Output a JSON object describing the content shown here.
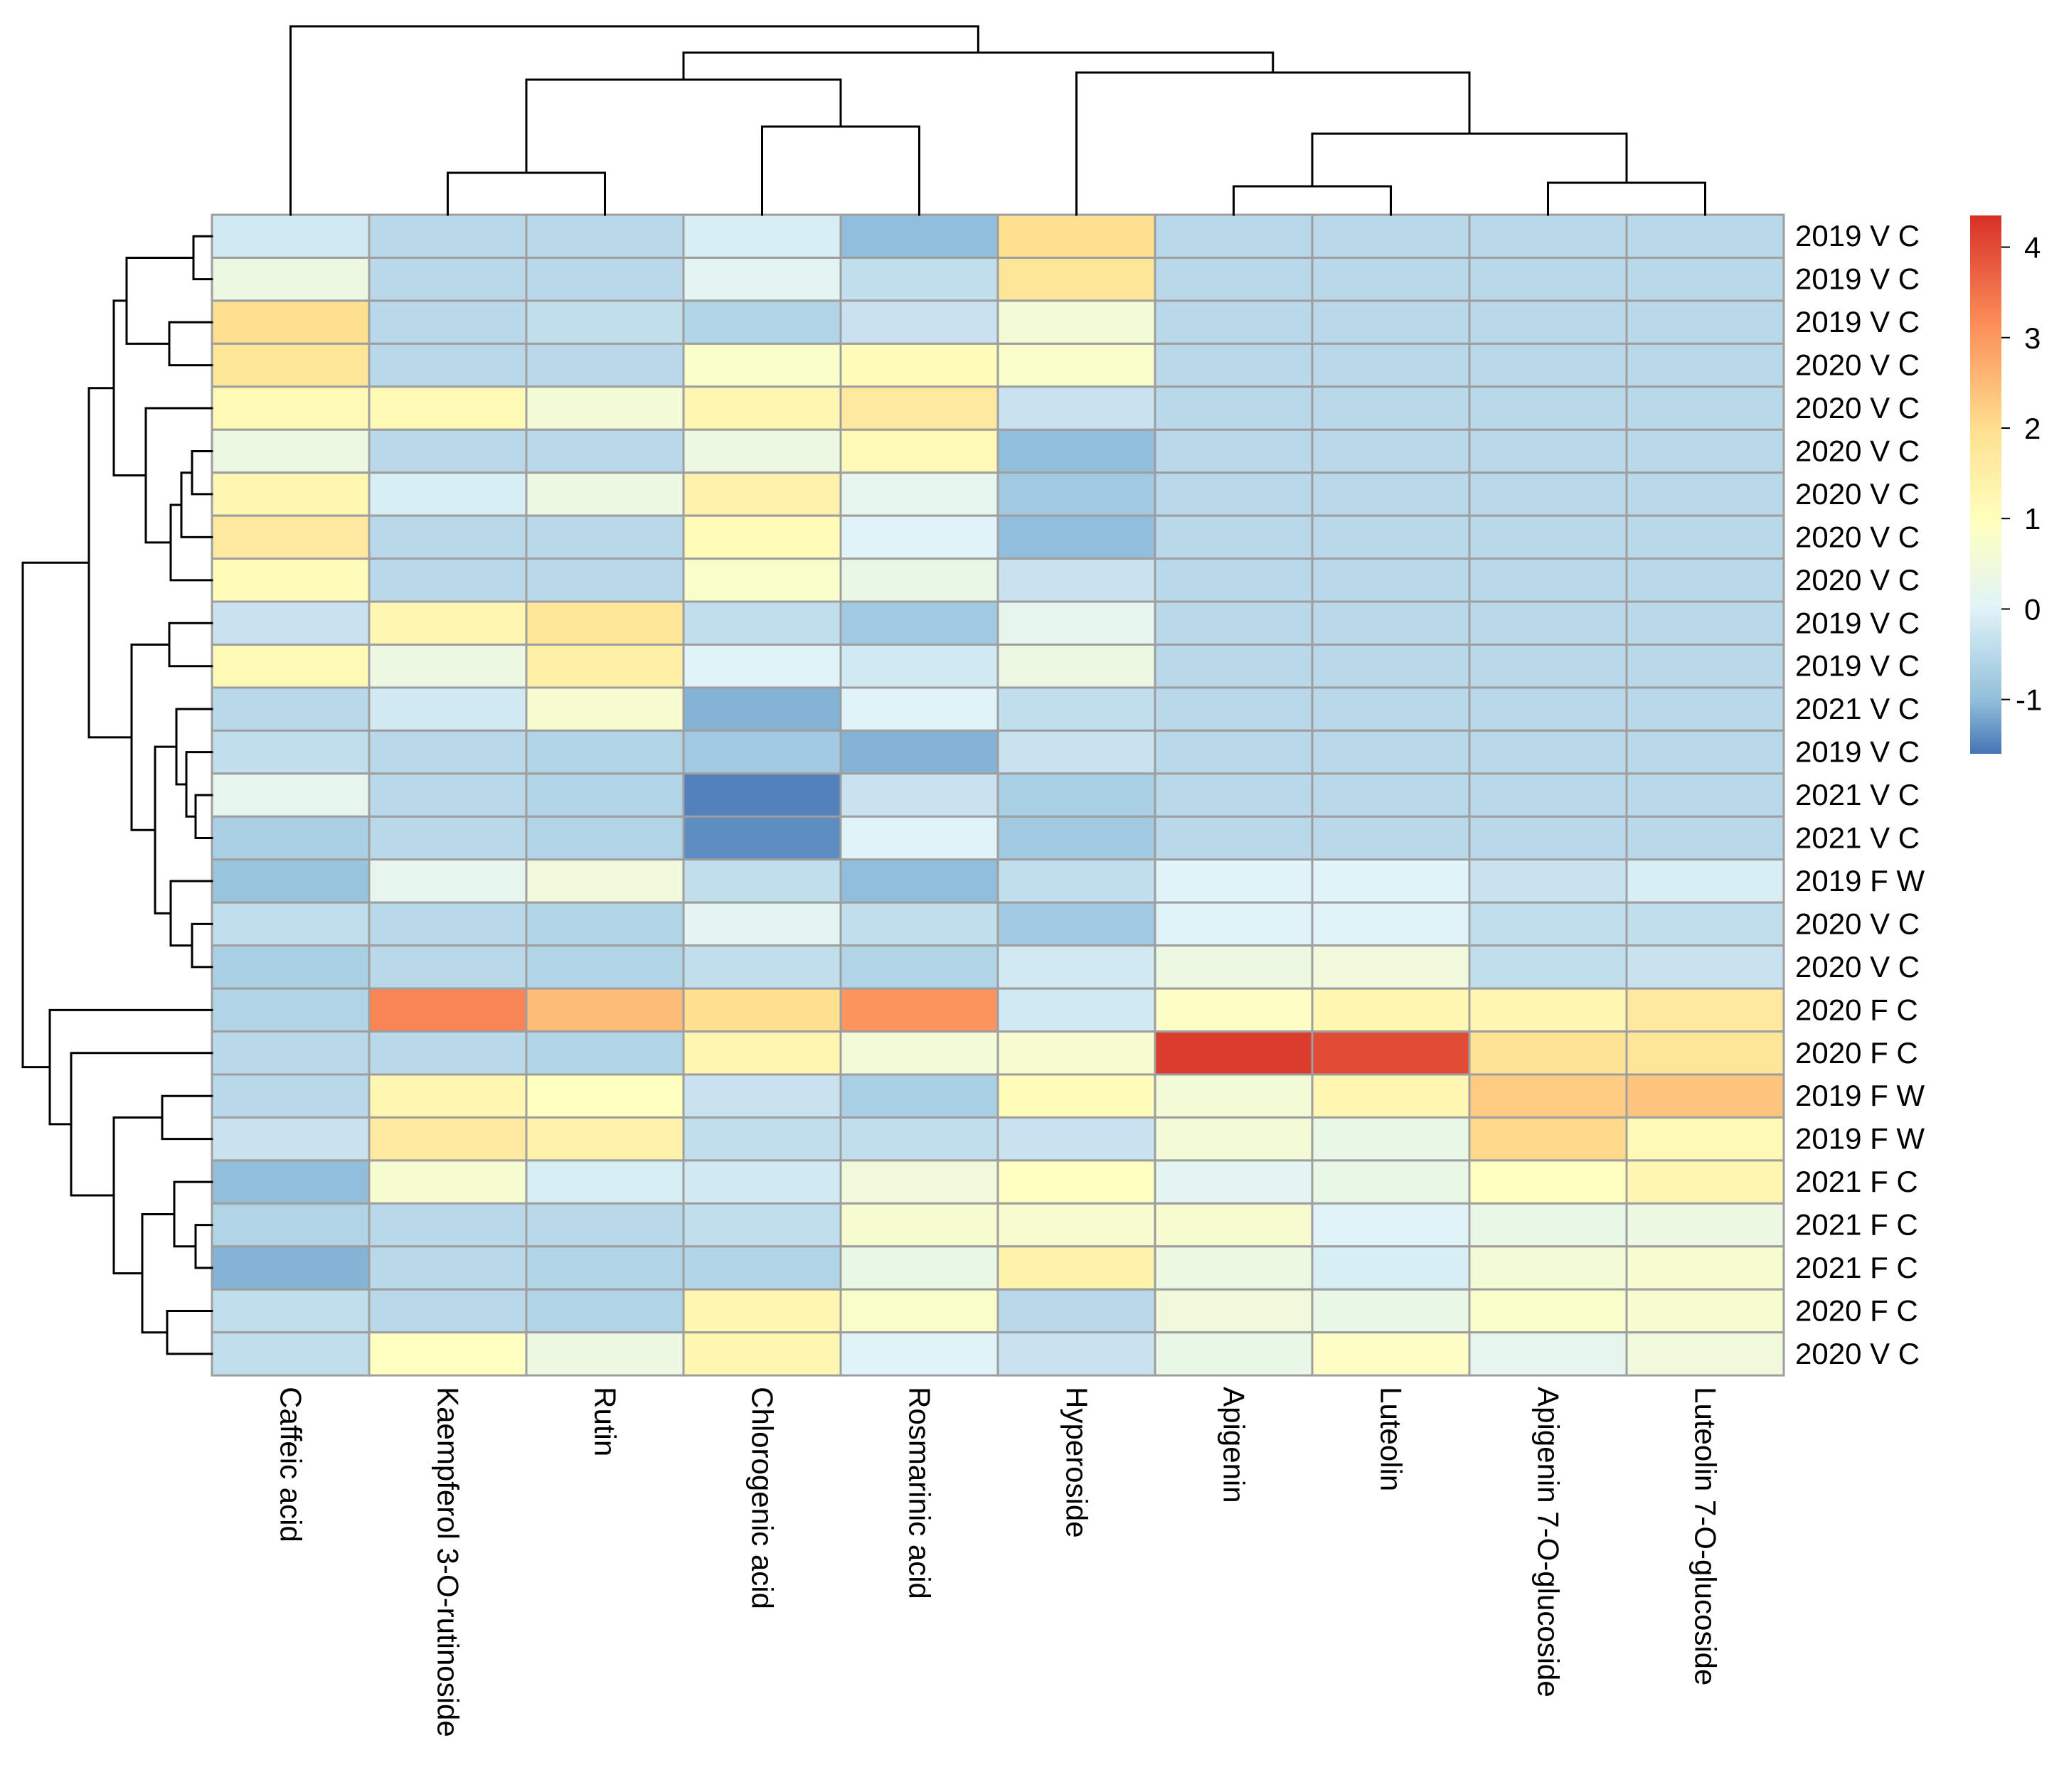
{
  "chart_data": {
    "type": "heatmap",
    "title": "",
    "columns": [
      "Caffeic acid",
      "Kaempferol 3-O-rutinoside",
      "Rutin",
      "Chlorogenic acid",
      "Rosmarinic acid",
      "Hyperoside",
      "Apigenin",
      "Luteolin",
      "Apigenin 7-O-glucoside",
      "Luteolin 7-O-glucoside"
    ],
    "rows": [
      "2019 V C",
      "2019 V C",
      "2019 V C",
      "2020 V C",
      "2020 V C",
      "2020 V C",
      "2020 V C",
      "2020 V C",
      "2020 V C",
      "2019 V C",
      "2019 V C",
      "2021 V C",
      "2019 V C",
      "2021 V C",
      "2021 V C",
      "2019 F W",
      "2020 V C",
      "2020 V C",
      "2020 F C",
      "2020 F C",
      "2019 F W",
      "2019 F W",
      "2021 F C",
      "2021 F C",
      "2021 F C",
      "2020 F C",
      "2020 V C"
    ],
    "values": [
      [
        -0.2,
        -0.5,
        -0.5,
        -0.1,
        -1.0,
        2.0,
        -0.5,
        -0.5,
        -0.5,
        -0.5
      ],
      [
        0.4,
        -0.5,
        -0.5,
        0.1,
        -0.4,
        1.8,
        -0.5,
        -0.5,
        -0.5,
        -0.5
      ],
      [
        2.0,
        -0.5,
        -0.4,
        -0.6,
        -0.3,
        0.6,
        -0.5,
        -0.5,
        -0.5,
        -0.5
      ],
      [
        1.8,
        -0.5,
        -0.5,
        0.8,
        1.1,
        0.8,
        -0.5,
        -0.5,
        -0.5,
        -0.5
      ],
      [
        1.2,
        1.2,
        0.6,
        1.3,
        1.7,
        -0.3,
        -0.5,
        -0.5,
        -0.5,
        -0.5
      ],
      [
        0.4,
        -0.5,
        -0.5,
        0.4,
        1.2,
        -1.0,
        -0.5,
        -0.5,
        -0.5,
        -0.5
      ],
      [
        1.3,
        -0.1,
        0.4,
        1.4,
        0.2,
        -0.8,
        -0.5,
        -0.5,
        -0.5,
        -0.5
      ],
      [
        1.7,
        -0.5,
        -0.5,
        1.1,
        0.0,
        -1.0,
        -0.5,
        -0.5,
        -0.5,
        -0.5
      ],
      [
        1.1,
        -0.5,
        -0.5,
        0.8,
        0.3,
        -0.3,
        -0.5,
        -0.5,
        -0.5,
        -0.5
      ],
      [
        -0.3,
        1.3,
        1.8,
        -0.4,
        -0.8,
        0.2,
        -0.5,
        -0.5,
        -0.5,
        -0.5
      ],
      [
        1.2,
        0.4,
        1.5,
        0.0,
        -0.2,
        0.4,
        -0.5,
        -0.5,
        -0.5,
        -0.5
      ],
      [
        -0.5,
        -0.2,
        0.7,
        -1.1,
        0.0,
        -0.4,
        -0.5,
        -0.5,
        -0.5,
        -0.5
      ],
      [
        -0.4,
        -0.5,
        -0.6,
        -0.8,
        -1.1,
        -0.3,
        -0.5,
        -0.5,
        -0.5,
        -0.5
      ],
      [
        0.2,
        -0.5,
        -0.6,
        -1.5,
        -0.3,
        -0.7,
        -0.5,
        -0.5,
        -0.5,
        -0.5
      ],
      [
        -0.7,
        -0.5,
        -0.6,
        -1.4,
        0.0,
        -0.8,
        -0.5,
        -0.5,
        -0.5,
        -0.5
      ],
      [
        -0.9,
        0.2,
        0.5,
        -0.4,
        -1.0,
        -0.4,
        0.0,
        0.0,
        -0.3,
        -0.1
      ],
      [
        -0.4,
        -0.5,
        -0.6,
        0.1,
        -0.4,
        -0.8,
        0.0,
        0.0,
        -0.4,
        -0.4
      ],
      [
        -0.7,
        -0.5,
        -0.6,
        -0.4,
        -0.6,
        -0.2,
        0.4,
        0.5,
        -0.4,
        -0.3
      ],
      [
        -0.6,
        3.3,
        2.5,
        2.0,
        3.1,
        -0.2,
        0.9,
        1.3,
        1.3,
        1.7
      ],
      [
        -0.5,
        -0.5,
        -0.6,
        1.3,
        0.6,
        0.7,
        4.2,
        4.0,
        1.9,
        1.8
      ],
      [
        -0.5,
        1.3,
        1.0,
        -0.3,
        -0.7,
        1.1,
        0.6,
        1.3,
        2.3,
        2.4
      ],
      [
        -0.3,
        1.7,
        1.4,
        -0.4,
        -0.4,
        -0.3,
        0.6,
        0.3,
        2.1,
        1.2
      ],
      [
        -1.0,
        0.7,
        -0.1,
        -0.2,
        0.5,
        1.0,
        0.1,
        0.3,
        1.0,
        1.3
      ],
      [
        -0.6,
        -0.5,
        -0.5,
        -0.4,
        0.7,
        0.7,
        0.7,
        0.0,
        0.3,
        0.4
      ],
      [
        -1.1,
        -0.5,
        -0.6,
        -0.6,
        0.3,
        1.4,
        0.4,
        -0.1,
        0.6,
        0.7
      ],
      [
        -0.4,
        -0.5,
        -0.6,
        1.3,
        0.8,
        -0.5,
        0.5,
        0.3,
        0.8,
        0.7
      ],
      [
        -0.4,
        1.0,
        0.4,
        1.3,
        0.0,
        -0.3,
        0.3,
        0.9,
        0.2,
        0.5
      ]
    ],
    "colorbar": {
      "min": -1.6,
      "max": 4.35,
      "ticks": [
        -1,
        0,
        1,
        2,
        3,
        4
      ]
    },
    "colors": [
      "#4575b4",
      "#91bfdb",
      "#e0f3f8",
      "#ffffbf",
      "#fee090",
      "#fc8d59",
      "#d73027"
    ],
    "col_dendrogram_order": "((Caffeic acid, ((Kaempferol 3-O-rutinoside, Rutin), (Chlorogenic acid, Rosmarinic acid))), (Hyperoside, ((Apigenin, Luteolin), (Apigenin 7-O-glucoside, Luteolin 7-O-glucoside))))",
    "row_dendrogram_order": "rows 1-18 cluster; rows 19-27 cluster"
  }
}
